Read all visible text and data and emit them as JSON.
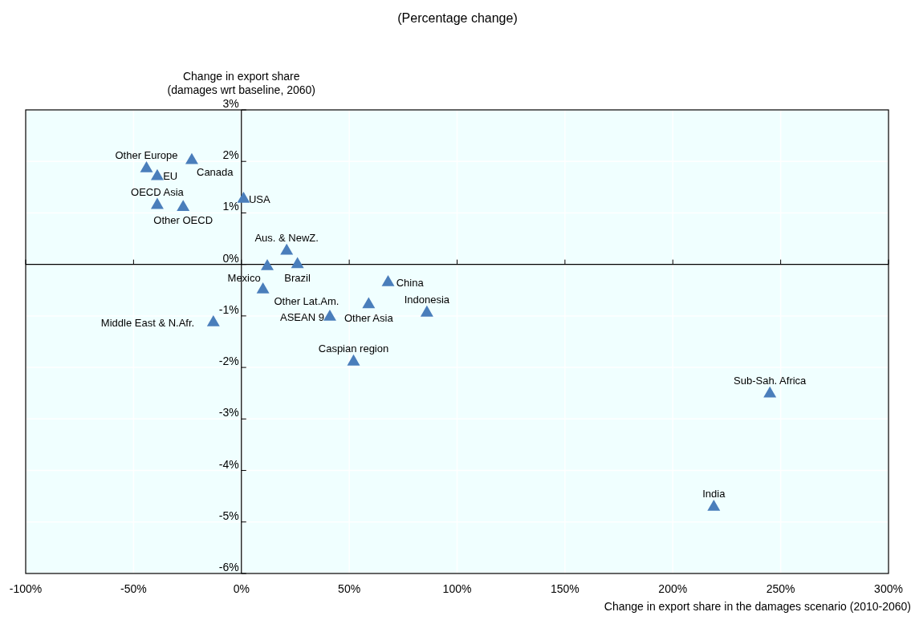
{
  "chart_data": {
    "type": "scatter",
    "title": "(Percentage change)",
    "xlabel": "Change in export share in the damages scenario (2010-2060)",
    "ylabel": "Change in export share\n(damages wrt baseline, 2060)",
    "xlim": [
      -100,
      300
    ],
    "ylim": [
      -6,
      3
    ],
    "xticks": [
      {
        "value": -100,
        "label": "-100%"
      },
      {
        "value": -50,
        "label": "-50%"
      },
      {
        "value": 0,
        "label": "0%"
      },
      {
        "value": 50,
        "label": "50%"
      },
      {
        "value": 100,
        "label": "100%"
      },
      {
        "value": 150,
        "label": "150%"
      },
      {
        "value": 200,
        "label": "200%"
      },
      {
        "value": 250,
        "label": "250%"
      },
      {
        "value": 300,
        "label": "300%"
      }
    ],
    "yticks": [
      {
        "value": -6,
        "label": "-6%"
      },
      {
        "value": -5,
        "label": "-5%"
      },
      {
        "value": -4,
        "label": "-4%"
      },
      {
        "value": -3,
        "label": "-3%"
      },
      {
        "value": -2,
        "label": "-2%"
      },
      {
        "value": -1,
        "label": "-1%"
      },
      {
        "value": 0,
        "label": "0%"
      },
      {
        "value": 1,
        "label": "1%"
      },
      {
        "value": 2,
        "label": "2%"
      },
      {
        "value": 3,
        "label": "3%"
      }
    ],
    "grid": true,
    "legend": false,
    "marker": "triangle",
    "series": [
      {
        "name": "Other Europe",
        "color": "#4a7ebb",
        "x": [
          -44
        ],
        "values": [
          1.86
        ]
      },
      {
        "name": "EU",
        "color": "#4a7ebb",
        "x": [
          -39
        ],
        "values": [
          1.71
        ]
      },
      {
        "name": "Canada",
        "color": "#4a7ebb",
        "x": [
          -23
        ],
        "values": [
          2.02
        ]
      },
      {
        "name": "OECD Asia",
        "color": "#4a7ebb",
        "x": [
          -39
        ],
        "values": [
          1.15
        ]
      },
      {
        "name": "Other OECD",
        "color": "#4a7ebb",
        "x": [
          -27
        ],
        "values": [
          1.11
        ]
      },
      {
        "name": "USA",
        "color": "#4a7ebb",
        "x": [
          1
        ],
        "values": [
          1.27
        ]
      },
      {
        "name": "Aus. & NewZ.",
        "color": "#4a7ebb",
        "x": [
          21
        ],
        "values": [
          0.26
        ]
      },
      {
        "name": "Brazil",
        "color": "#4a7ebb",
        "x": [
          26
        ],
        "values": [
          0.0
        ]
      },
      {
        "name": "Mexico",
        "color": "#4a7ebb",
        "x": [
          12
        ],
        "values": [
          -0.04
        ]
      },
      {
        "name": "Other Lat.Am.",
        "color": "#4a7ebb",
        "x": [
          10
        ],
        "values": [
          -0.49
        ]
      },
      {
        "name": "Middle East & N.Afr.",
        "color": "#4a7ebb",
        "x": [
          -13
        ],
        "values": [
          -1.13
        ]
      },
      {
        "name": "China",
        "color": "#4a7ebb",
        "x": [
          68
        ],
        "values": [
          -0.35
        ]
      },
      {
        "name": "Other Asia",
        "color": "#4a7ebb",
        "x": [
          59
        ],
        "values": [
          -0.78
        ]
      },
      {
        "name": "ASEAN 9",
        "color": "#4a7ebb",
        "x": [
          41
        ],
        "values": [
          -1.02
        ]
      },
      {
        "name": "Indonesia",
        "color": "#4a7ebb",
        "x": [
          86
        ],
        "values": [
          -0.94
        ]
      },
      {
        "name": "Caspian region",
        "color": "#4a7ebb",
        "x": [
          52
        ],
        "values": [
          -1.89
        ]
      },
      {
        "name": "Sub-Sah. Africa",
        "color": "#4a7ebb",
        "x": [
          245
        ],
        "values": [
          -2.51
        ]
      },
      {
        "name": "India",
        "color": "#4a7ebb",
        "x": [
          219
        ],
        "values": [
          -4.71
        ]
      }
    ]
  }
}
